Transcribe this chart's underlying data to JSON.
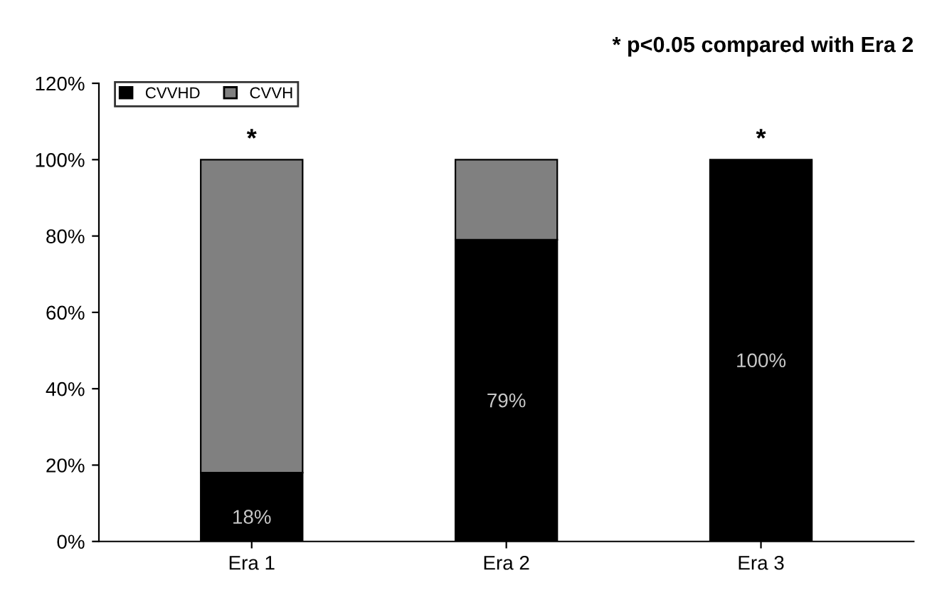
{
  "chart_data": {
    "type": "bar",
    "stacked": true,
    "categories": [
      "Era 1",
      "Era 2",
      "Era 3"
    ],
    "series": [
      {
        "name": "CVVHD",
        "color": "#000000",
        "values": [
          18,
          79,
          100
        ],
        "value_labels": [
          "18%",
          "79%",
          "100%"
        ]
      },
      {
        "name": "CVVH",
        "color": "#808080",
        "values": [
          82,
          21,
          null
        ]
      }
    ],
    "ylim": [
      0,
      120
    ],
    "yticks": [
      {
        "value": 0,
        "label": "0%"
      },
      {
        "value": 20,
        "label": "20%"
      },
      {
        "value": 40,
        "label": "40%"
      },
      {
        "value": 60,
        "label": "60%"
      },
      {
        "value": 80,
        "label": "80%"
      },
      {
        "value": 100,
        "label": "100%"
      },
      {
        "value": 120,
        "label": "120%"
      }
    ],
    "annotations": [
      "* p<0.05 compared with Era 2",
      {
        "text": "*",
        "x": "Era 1",
        "y": 100
      },
      {
        "text": "*",
        "x": "Era 3",
        "y": 100
      }
    ],
    "legend": "top left",
    "grid": false
  }
}
